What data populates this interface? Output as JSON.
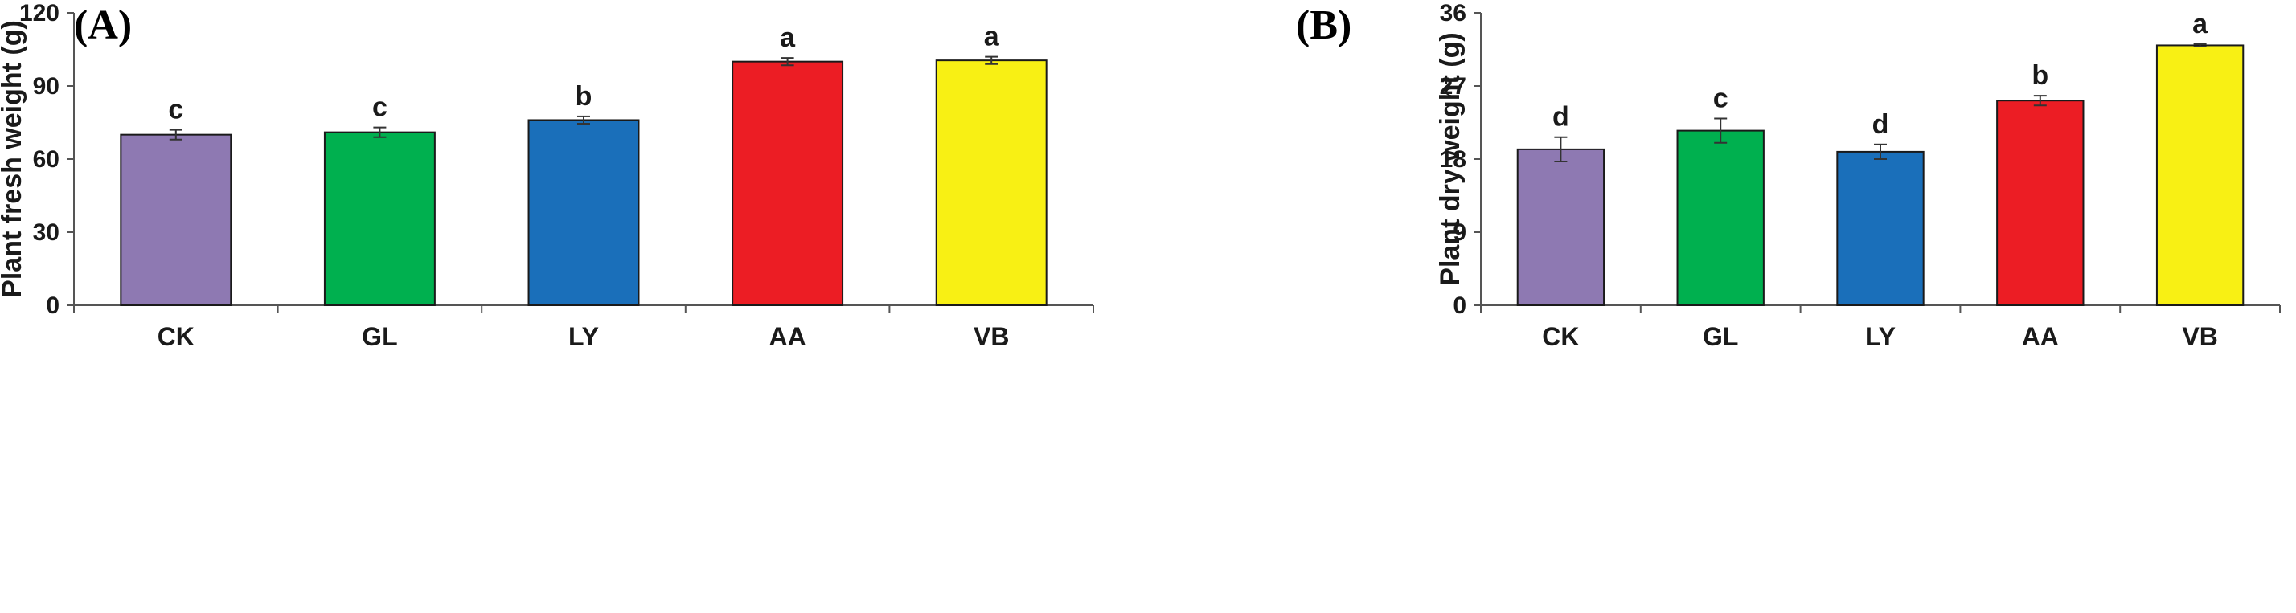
{
  "chart_data": [
    {
      "type": "bar",
      "panel_label": "(A)",
      "title": "",
      "xlabel": "",
      "ylabel": "Plant fresh weight (g)",
      "ylim": [
        0,
        120
      ],
      "yticks": [
        0,
        30,
        60,
        90,
        120
      ],
      "categories": [
        "CK",
        "GL",
        "LY",
        "AA",
        "VB"
      ],
      "values": [
        70.0,
        71.0,
        76.0,
        100.0,
        100.5
      ],
      "errors": [
        2.0,
        2.0,
        1.5,
        1.5,
        1.5
      ],
      "significance": [
        "c",
        "c",
        "b",
        "a",
        "a"
      ],
      "colors": [
        "#8e79b2",
        "#00b04f",
        "#1a6fba",
        "#ec1d24",
        "#f8f014"
      ]
    },
    {
      "type": "bar",
      "panel_label": "(B)",
      "title": "",
      "xlabel": "",
      "ylabel": "Plant dry weight (g)",
      "ylim": [
        0,
        36
      ],
      "yticks": [
        0,
        9,
        18,
        27,
        36
      ],
      "categories": [
        "CK",
        "GL",
        "LY",
        "AA",
        "VB"
      ],
      "values": [
        19.2,
        21.5,
        18.9,
        25.2,
        32.0
      ],
      "errors": [
        1.5,
        1.5,
        0.9,
        0.6,
        0.15
      ],
      "significance": [
        "d",
        "c",
        "d",
        "b",
        "a"
      ],
      "colors": [
        "#8e79b2",
        "#00b04f",
        "#1a6fba",
        "#ec1d24",
        "#f8f014"
      ]
    }
  ]
}
